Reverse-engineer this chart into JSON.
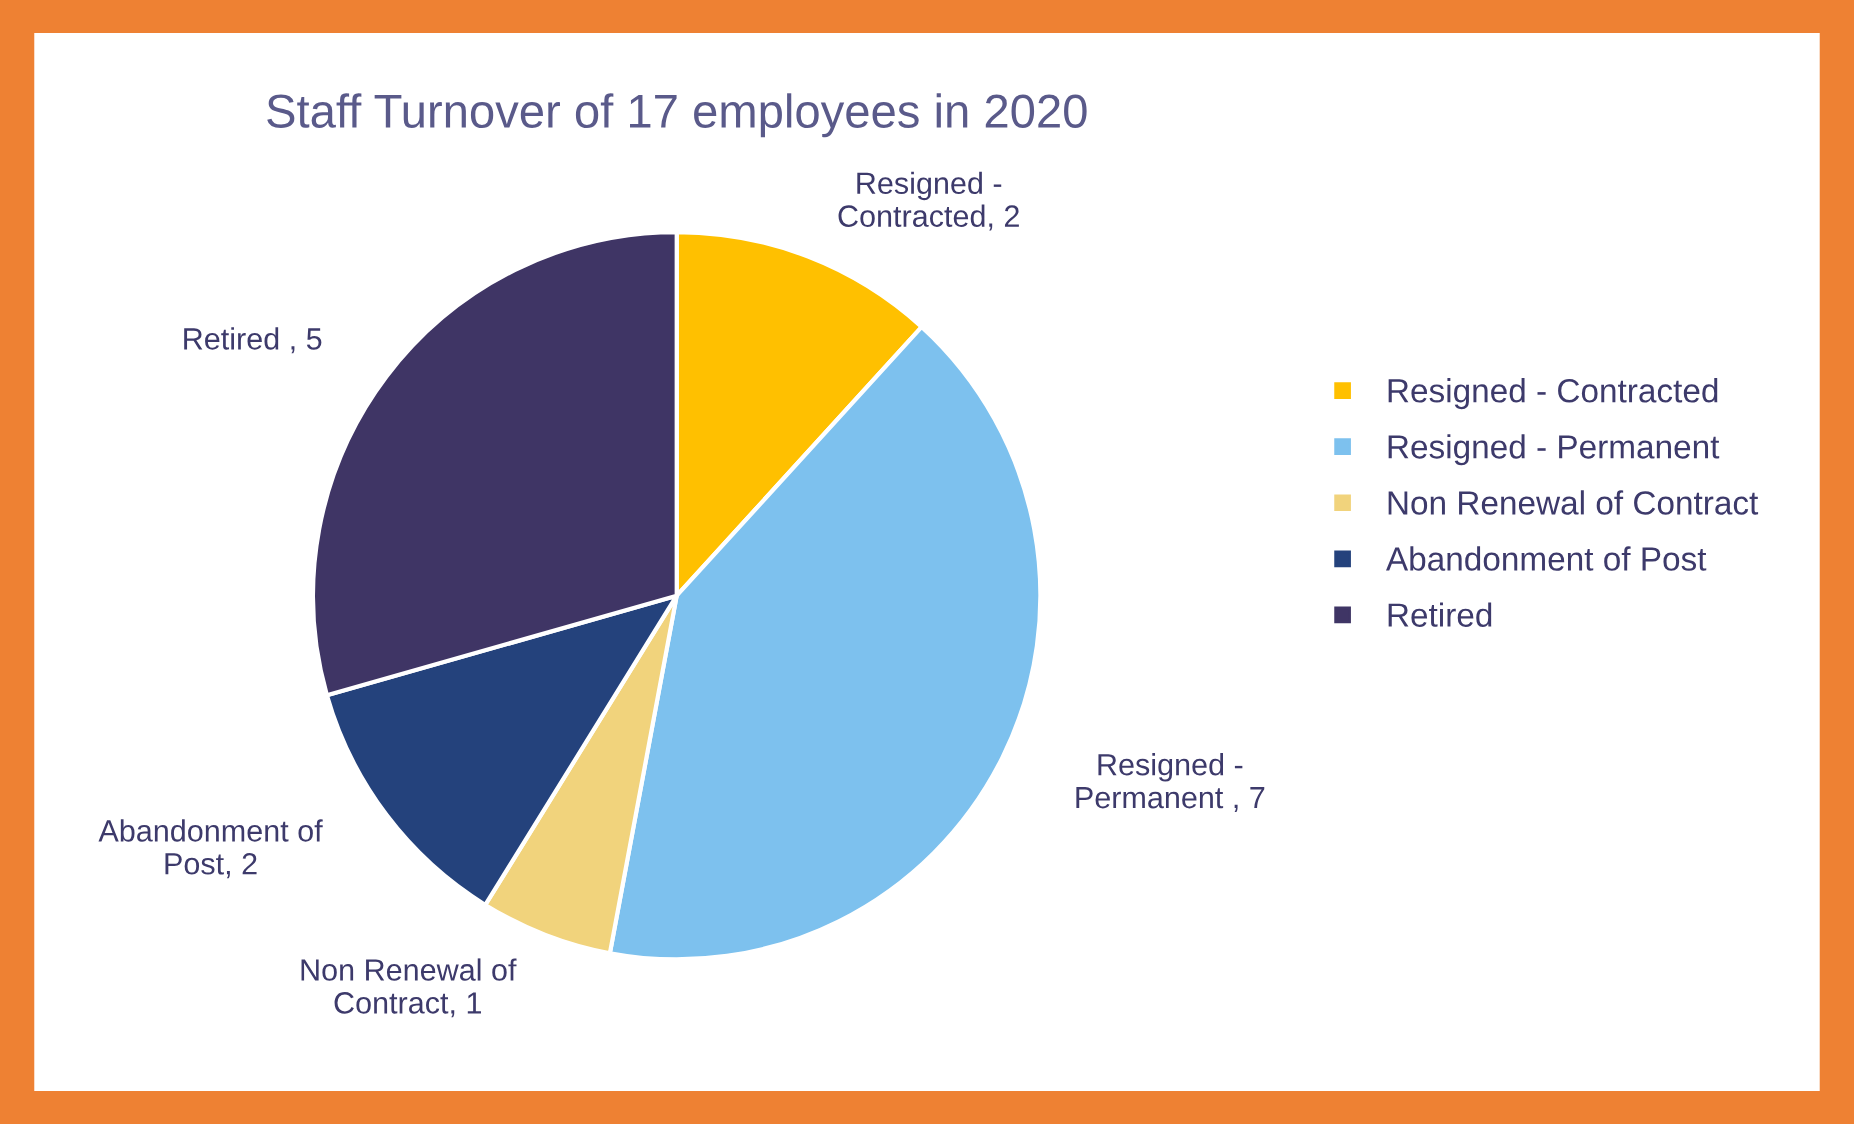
{
  "chart_data": {
    "type": "pie",
    "title": "Staff Turnover of 17 employees in 2020",
    "categories": [
      "Resigned - Contracted",
      "Resigned - Permanent",
      "Non Renewal of Contract",
      "Abandonment of Post",
      "Retired"
    ],
    "values": [
      2,
      7,
      1,
      2,
      5
    ],
    "colors": [
      "#ffc000",
      "#7dc1ee",
      "#f1d37c",
      "#24427c",
      "#3f3565"
    ],
    "value_labels": [
      "Resigned -\nContracted, 2",
      "Resigned -\nPermanent , 7",
      "Non Renewal of\nContract, 1",
      "Abandonment of\nPost, 2",
      "Retired , 5"
    ],
    "legend": "right"
  }
}
